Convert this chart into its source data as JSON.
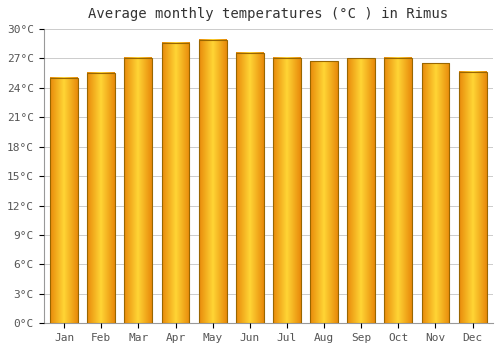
{
  "title": "Average monthly temperatures (°C ) in Rimus",
  "months": [
    "Jan",
    "Feb",
    "Mar",
    "Apr",
    "May",
    "Jun",
    "Jul",
    "Aug",
    "Sep",
    "Oct",
    "Nov",
    "Dec"
  ],
  "values": [
    25.0,
    25.5,
    27.1,
    28.6,
    28.9,
    27.6,
    27.1,
    26.7,
    27.0,
    27.1,
    26.5,
    25.6
  ],
  "bar_color_left": "#E8890A",
  "bar_color_center": "#FFD535",
  "bar_color_right": "#E8890A",
  "bar_edge_color": "#888800",
  "background_color": "#FFFFFF",
  "plot_bg_color": "#FFFFFF",
  "grid_color": "#CCCCCC",
  "ylim": [
    0,
    30
  ],
  "yticks": [
    0,
    3,
    6,
    9,
    12,
    15,
    18,
    21,
    24,
    27,
    30
  ],
  "ytick_labels": [
    "0°C",
    "3°C",
    "6°C",
    "9°C",
    "12°C",
    "15°C",
    "18°C",
    "21°C",
    "24°C",
    "27°C",
    "30°C"
  ],
  "title_fontsize": 10,
  "tick_fontsize": 8,
  "figsize": [
    5.0,
    3.5
  ],
  "dpi": 100,
  "bar_width": 0.75
}
